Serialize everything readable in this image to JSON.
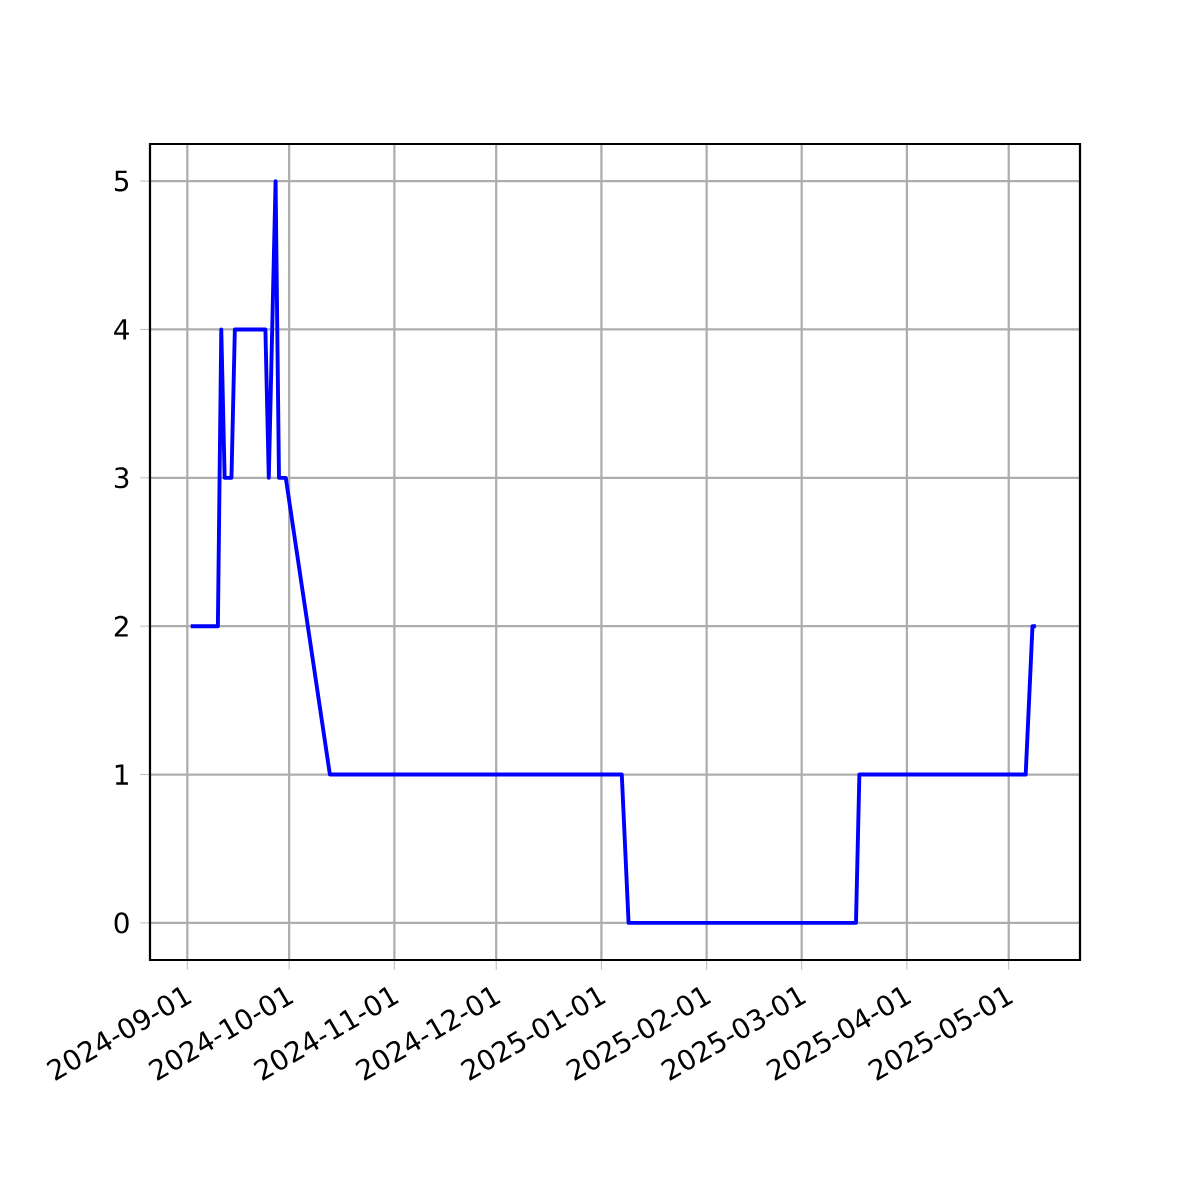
{
  "chart_data": {
    "type": "line",
    "x": [
      "2024-09-02",
      "2024-09-10",
      "2024-09-11",
      "2024-09-12",
      "2024-09-14",
      "2024-09-15",
      "2024-09-24",
      "2024-09-25",
      "2024-09-27",
      "2024-09-28",
      "2024-09-30",
      "2024-10-13",
      "2025-01-07",
      "2025-01-09",
      "2025-03-17",
      "2025-03-18",
      "2025-05-06",
      "2025-05-08",
      "2025-05-09"
    ],
    "series": [
      {
        "color": "#0000ff",
        "values": [
          2,
          2,
          4,
          3,
          3,
          4,
          4,
          3,
          5,
          3,
          3,
          1,
          1,
          0,
          0,
          1,
          1,
          2,
          2
        ]
      }
    ],
    "xlim": [
      "2024-08-21",
      "2025-05-22"
    ],
    "xticks": [
      "2024-09-01",
      "2024-10-01",
      "2024-11-01",
      "2024-12-01",
      "2025-01-01",
      "2025-02-01",
      "2025-03-01",
      "2025-04-01",
      "2025-05-01"
    ],
    "ylim": [
      -0.25,
      5.25
    ],
    "yticks": [
      0,
      1,
      2,
      3,
      4,
      5
    ],
    "grid": true,
    "marker": "none",
    "line_style": "solid"
  }
}
